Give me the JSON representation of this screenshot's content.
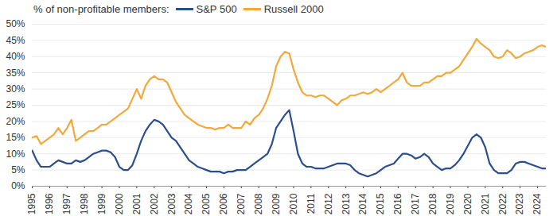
{
  "chart_data": {
    "type": "line",
    "title": "% of non-profitable members:",
    "legend": "top",
    "grid": true,
    "x": [
      1995,
      1995.25,
      1995.5,
      1995.75,
      1996,
      1996.25,
      1996.5,
      1996.75,
      1997,
      1997.25,
      1997.5,
      1997.75,
      1998,
      1998.25,
      1998.5,
      1998.75,
      1999,
      1999.25,
      1999.5,
      1999.75,
      2000,
      2000.25,
      2000.5,
      2000.75,
      2001,
      2001.25,
      2001.5,
      2001.75,
      2002,
      2002.25,
      2002.5,
      2002.75,
      2003,
      2003.25,
      2003.5,
      2003.75,
      2004,
      2004.25,
      2004.5,
      2004.75,
      2005,
      2005.25,
      2005.5,
      2005.75,
      2006,
      2006.25,
      2006.5,
      2006.75,
      2007,
      2007.25,
      2007.5,
      2007.75,
      2008,
      2008.25,
      2008.5,
      2008.75,
      2009,
      2009.25,
      2009.5,
      2009.75,
      2010,
      2010.25,
      2010.5,
      2010.75,
      2011,
      2011.25,
      2011.5,
      2011.75,
      2012,
      2012.25,
      2012.5,
      2012.75,
      2013,
      2013.25,
      2013.5,
      2013.75,
      2014,
      2014.25,
      2014.5,
      2014.75,
      2015,
      2015.25,
      2015.5,
      2015.75,
      2016,
      2016.25,
      2016.5,
      2016.75,
      2017,
      2017.25,
      2017.5,
      2017.75,
      2018,
      2018.25,
      2018.5,
      2018.75,
      2019,
      2019.25,
      2019.5,
      2019.75,
      2020,
      2020.25,
      2020.5,
      2020.75,
      2021,
      2021.25,
      2021.5,
      2021.75,
      2022,
      2022.25,
      2022.5,
      2022.75,
      2023,
      2023.25,
      2023.5,
      2023.75,
      2024,
      2024.25,
      2024.5
    ],
    "series": [
      {
        "name": "S&P 500",
        "color": "#2b4f8e",
        "values": [
          11,
          8,
          6,
          6,
          6,
          7,
          8,
          7.5,
          7,
          7,
          8,
          7.5,
          8,
          9,
          10,
          10.5,
          11,
          11,
          10.5,
          9,
          6,
          5,
          5,
          6.5,
          10,
          14,
          17,
          19,
          20.5,
          20,
          19,
          17,
          15,
          14,
          12,
          10,
          8,
          7,
          6,
          5.5,
          5,
          4.5,
          4.5,
          4.5,
          4,
          4.5,
          4.5,
          5,
          5,
          5,
          6,
          7,
          8,
          9,
          10,
          13,
          18,
          20,
          22,
          23.5,
          17,
          10,
          7,
          6,
          6,
          5.5,
          5.5,
          5.5,
          6,
          6.5,
          7,
          7,
          7,
          6.5,
          5,
          4,
          3.5,
          3,
          3.5,
          4,
          5,
          6,
          6.5,
          7,
          8.5,
          10,
          10,
          9.5,
          8.5,
          9,
          10,
          9,
          7,
          6,
          5,
          5.5,
          5.5,
          6.5,
          8,
          10,
          12.5,
          15,
          16,
          15,
          12,
          7,
          5,
          4,
          4,
          4,
          5,
          7,
          7.5,
          7.5,
          7,
          6.5,
          6,
          5.5,
          5.5
        ]
      },
      {
        "name": "Russell 2000",
        "color": "#f2a93b",
        "values": [
          15,
          15.5,
          13,
          14,
          15,
          16,
          18,
          16,
          18,
          20.5,
          14,
          15,
          16,
          17,
          17,
          18,
          19,
          19,
          20,
          21,
          22,
          23,
          24,
          27,
          30,
          27,
          31,
          33,
          34,
          33,
          33,
          32,
          29,
          26,
          24,
          22,
          21,
          20,
          19,
          18.5,
          18,
          18,
          17.5,
          18,
          18,
          19,
          18,
          18,
          18,
          20,
          19,
          21,
          22,
          24,
          27,
          31,
          37,
          40,
          41.5,
          41,
          36,
          32,
          29,
          28,
          28,
          27.5,
          28,
          28,
          27,
          26,
          25,
          26.5,
          27,
          28,
          28,
          28.5,
          29,
          28.5,
          29,
          30,
          29,
          30,
          31,
          32,
          33,
          35,
          32,
          31,
          31,
          31,
          32,
          32,
          33,
          34,
          34,
          35,
          35,
          36,
          37,
          39,
          41,
          43,
          45.5,
          44,
          43,
          42,
          40,
          39.5,
          40,
          42,
          41,
          39.5,
          40,
          41,
          41.5,
          42,
          43,
          43.5,
          43
        ]
      }
    ],
    "xlim": [
      1995,
      2024.5
    ],
    "xticks": [
      1995,
      1996,
      1997,
      1998,
      1999,
      2000,
      2001,
      2002,
      2003,
      2004,
      2005,
      2006,
      2007,
      2008,
      2009,
      2010,
      2011,
      2012,
      2013,
      2014,
      2015,
      2016,
      2017,
      2018,
      2019,
      2020,
      2021,
      2022,
      2023,
      2024
    ],
    "ylim": [
      0,
      50
    ],
    "yticks": [
      {
        "value": 0,
        "label": "0%"
      },
      {
        "value": 5,
        "label": "5%"
      },
      {
        "value": 10,
        "label": "10%"
      },
      {
        "value": 15,
        "label": "15%"
      },
      {
        "value": 20,
        "label": "20%"
      },
      {
        "value": 25,
        "label": "25%"
      },
      {
        "value": 30,
        "label": "30%"
      },
      {
        "value": 35,
        "label": "35%"
      },
      {
        "value": 40,
        "label": "40%"
      },
      {
        "value": 45,
        "label": "45%"
      },
      {
        "value": 50,
        "label": "50%"
      }
    ]
  }
}
